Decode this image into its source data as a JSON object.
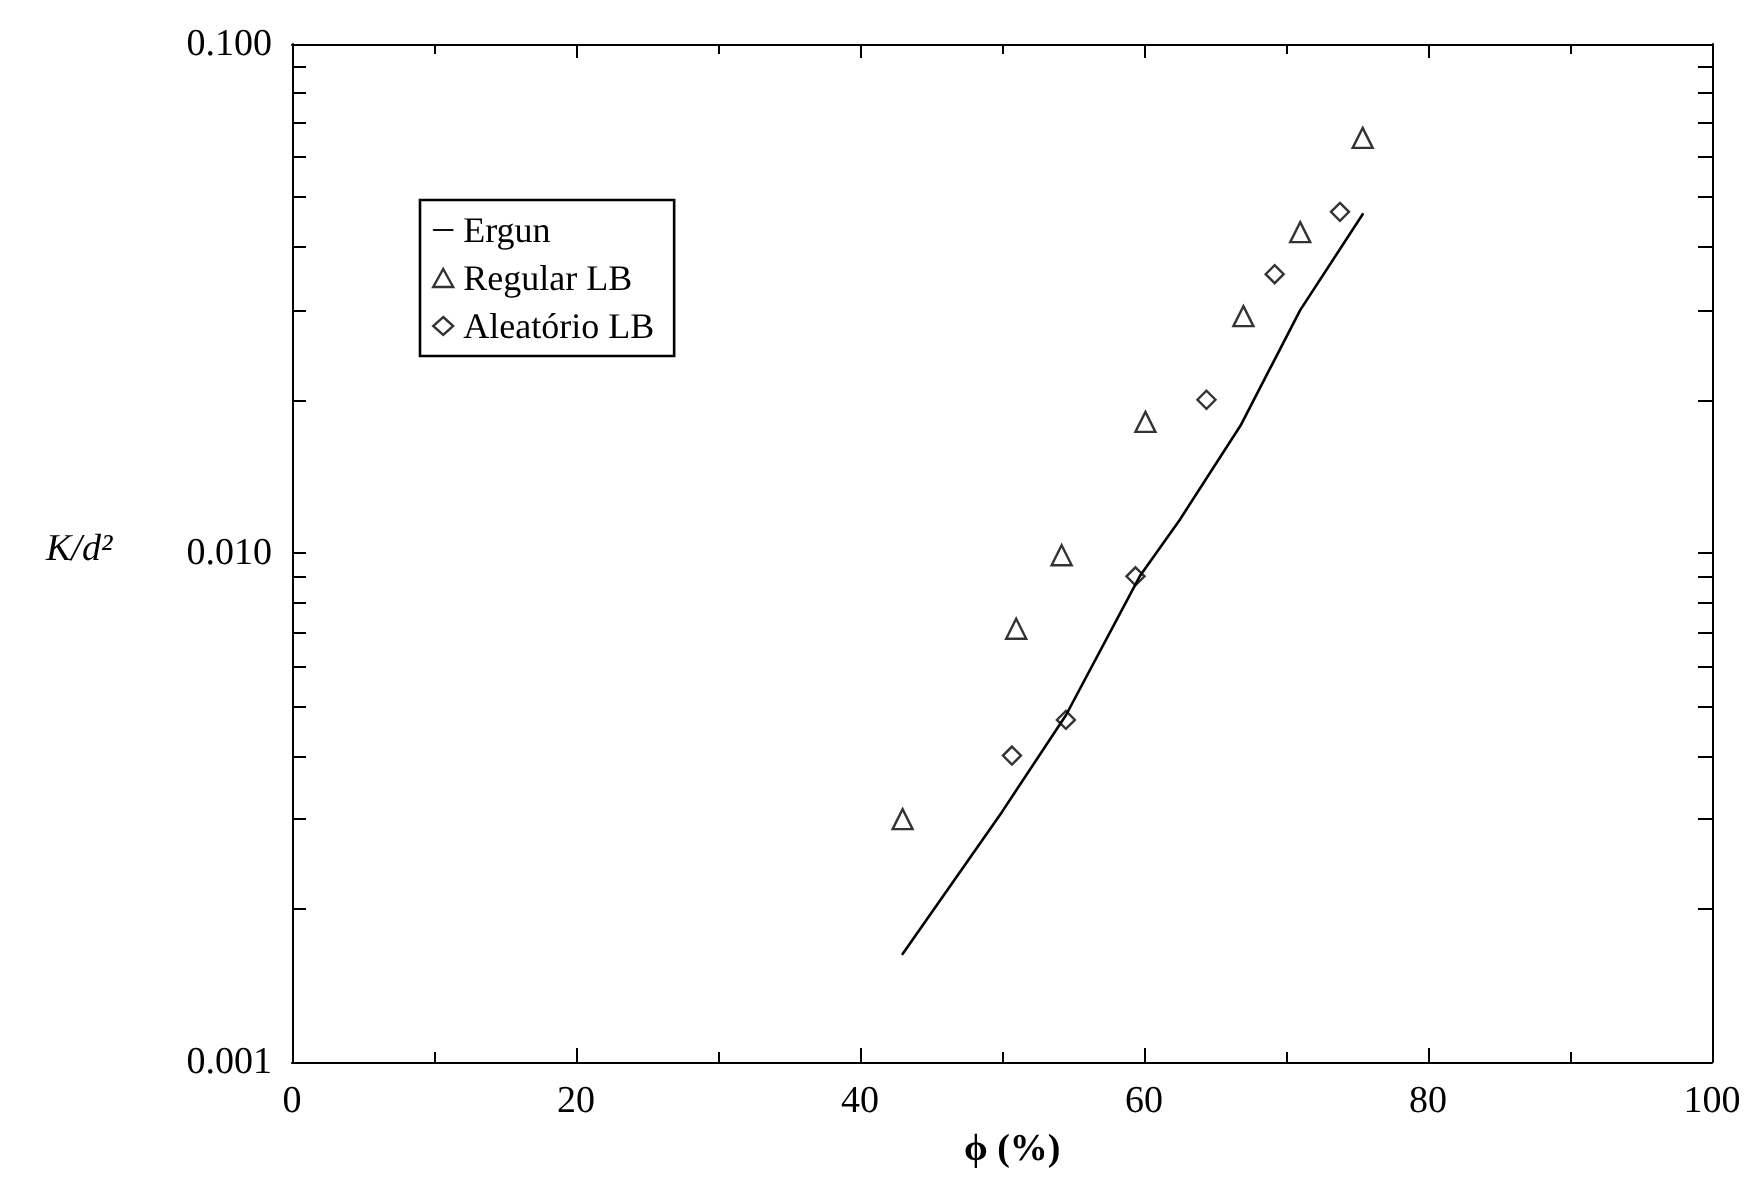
{
  "chart_data": {
    "type": "scatter",
    "xlabel": "ϕ (%)",
    "ylabel": "K/d²",
    "log": "y",
    "grid": false,
    "legend": "top left",
    "xlim": [
      0,
      100
    ],
    "xticks": [
      0,
      20,
      40,
      60,
      80,
      100
    ],
    "ylim": [
      0.001,
      0.1
    ],
    "yticks": [
      {
        "value": 0.001,
        "label": "0.001"
      },
      {
        "value": 0.01,
        "label": "0.010"
      },
      {
        "value": 0.1,
        "label": "0.100"
      }
    ],
    "series": [
      {
        "name": "Ergun",
        "type": "line",
        "marker": "none",
        "line_style": "solid",
        "color": "#000000",
        "x": [
          43.0,
          50.0,
          54.5,
          59.7,
          62.5,
          66.8,
          71.0,
          75.4
        ],
        "values": [
          0.00163,
          0.0031,
          0.0048,
          0.009,
          0.0116,
          0.0178,
          0.03,
          0.0463
        ]
      },
      {
        "name": "Regular LB",
        "marker": "triangle",
        "color": "#000000",
        "x": [
          43.0,
          51.0,
          54.2,
          60.1,
          67.0,
          71.0,
          75.4
        ],
        "values": [
          0.003,
          0.0071,
          0.0099,
          0.0181,
          0.0292,
          0.0427,
          0.0654
        ]
      },
      {
        "name": "Aleatório LB",
        "marker": "diamond",
        "color": "#000000",
        "x": [
          50.7,
          54.5,
          59.4,
          64.4,
          69.2,
          73.8
        ],
        "values": [
          0.004,
          0.0047,
          0.009,
          0.02,
          0.0353,
          0.0468
        ]
      }
    ]
  }
}
